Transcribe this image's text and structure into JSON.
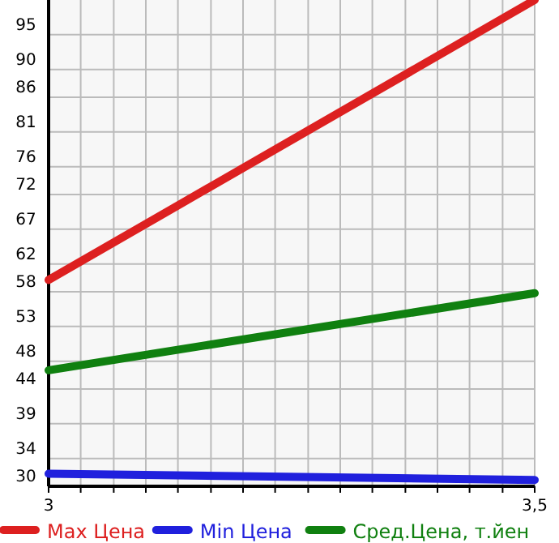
{
  "chart_data": {
    "type": "line",
    "x": [
      3,
      3.5
    ],
    "series": [
      {
        "name": "Max Цена",
        "color": "#dd2020",
        "values": [
          59.7,
          100
        ]
      },
      {
        "name": "Min Цена",
        "color": "#2020dd",
        "values": [
          31.8,
          30.9
        ]
      },
      {
        "name": "Сред.Цена, т.йен",
        "color": "#108010",
        "values": [
          46.7,
          57.8
        ]
      }
    ],
    "xlim": [
      3,
      3.5
    ],
    "xticks": [
      {
        "value": 3,
        "label": "3"
      },
      {
        "value": 3.033,
        "label": null
      },
      {
        "value": 3.067,
        "label": null
      },
      {
        "value": 3.1,
        "label": null
      },
      {
        "value": 3.133,
        "label": null
      },
      {
        "value": 3.167,
        "label": null
      },
      {
        "value": 3.2,
        "label": null
      },
      {
        "value": 3.233,
        "label": null
      },
      {
        "value": 3.267,
        "label": null
      },
      {
        "value": 3.3,
        "label": null
      },
      {
        "value": 3.333,
        "label": null
      },
      {
        "value": 3.367,
        "label": null
      },
      {
        "value": 3.4,
        "label": null
      },
      {
        "value": 3.433,
        "label": null
      },
      {
        "value": 3.467,
        "label": null
      },
      {
        "value": 3.5,
        "label": "3,5"
      }
    ],
    "ylim": [
      30,
      100
    ],
    "yticks": [
      30,
      34,
      39,
      44,
      48,
      53,
      58,
      62,
      67,
      72,
      76,
      81,
      86,
      90,
      95
    ],
    "grid": true,
    "legend": "bottom",
    "marker": "none",
    "line_style": "solid"
  }
}
